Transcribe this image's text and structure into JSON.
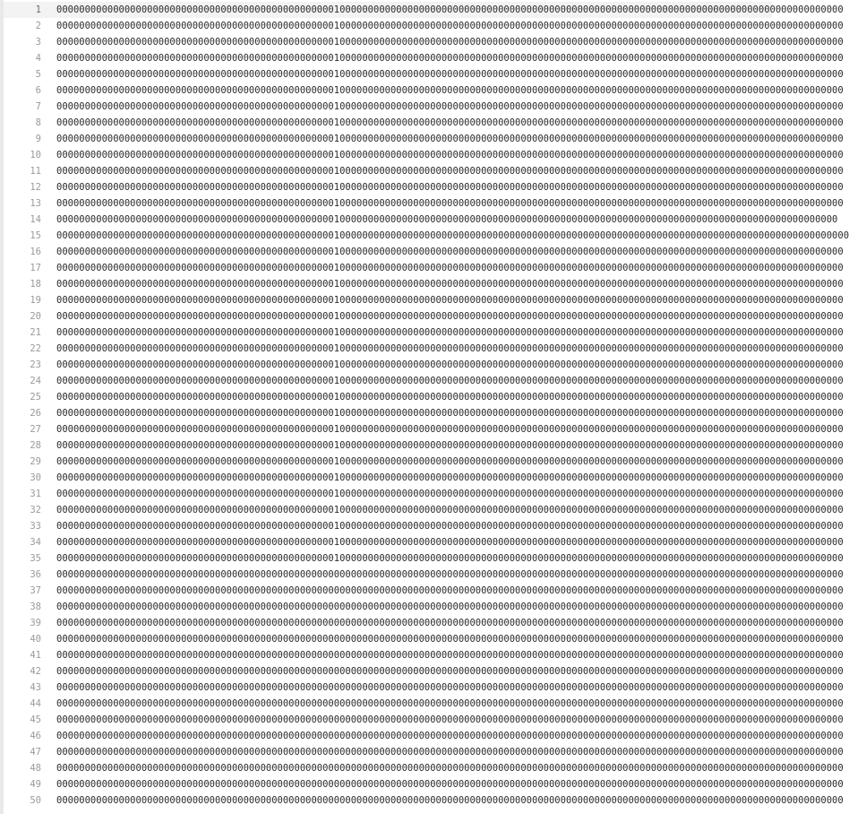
{
  "editor": {
    "current_line": 1,
    "lines": [
      {
        "number": "1",
        "text": "0000000000000000000000000000000000000000000000000100000000000000000000000000000000000000000000000000000000000000000000000000000000000000000"
      },
      {
        "number": "2",
        "text": "0000000000000000000000000000000000000000000000000100000000000000000000000000000000000000000000000000000000000000000000000000000000000000000"
      },
      {
        "number": "3",
        "text": "0000000000000000000000000000000000000000000000000100000000000000000000000000000000000000000000000000000000000000000000000000000000000000000"
      },
      {
        "number": "4",
        "text": "0000000000000000000000000000000000000000000000000100000000000000000000000000000000000000000000000000000000000000000000000000000000000000000"
      },
      {
        "number": "5",
        "text": "0000000000000000000000000000000000000000000000000100000000000000000000000000000000000000000000000000000000000000000000000000000000000000000"
      },
      {
        "number": "6",
        "text": "0000000000000000000000000000000000000000000000000100000000000000000000000000000000000000000000000000000000000000000000000000000000000000000"
      },
      {
        "number": "7",
        "text": "0000000000000000000000000000000000000000000000000100000000000000000000000000000000000000000000000000000000000000000000000000000000000000000"
      },
      {
        "number": "8",
        "text": "0000000000000000000000000000000000000000000000000100000000000000000000000000000000000000000000000000000000000000000000000000000000000000000"
      },
      {
        "number": "9",
        "text": "0000000000000000000000000000000000000000000000000100000000000000000000000000000000000000000000000000000000000000000000000000000000000000000"
      },
      {
        "number": "10",
        "text": "0000000000000000000000000000000000000000000000000100000000000000000000000000000000000000000000000000000000000000000000000000000000000000000"
      },
      {
        "number": "11",
        "text": "0000000000000000000000000000000000000000000000000100000000000000000000000000000000000000000000000000000000000000000000000000000000000000000"
      },
      {
        "number": "12",
        "text": "0000000000000000000000000000000000000000000000000100000000000000000000000000000000000000000000000000000000000000000000000000000000000000000"
      },
      {
        "number": "13",
        "text": "0000000000000000000000000000000000000000000000000100000000000000000000000000000000000000000000000000000000000000000000000000000000000000000"
      },
      {
        "number": "14",
        "text": "000000000000000000000000000000000000000000000000010000000000000000000000000000000000000000000000000000000000000000000000000000000000000000"
      },
      {
        "number": "15",
        "text": "00000000000000000000000000000000000000000000000001000000000000000000000000000000000000000000000000000000000000000000000000000000000000000000"
      },
      {
        "number": "16",
        "text": "0000000000000000000000000000000000000000000000000100000000000000000000000000000000000000000000000000000000000000000000000000000000000000000"
      },
      {
        "number": "17",
        "text": "0000000000000000000000000000000000000000000000000100000000000000000000000000000000000000000000000000000000000000000000000000000000000000000"
      },
      {
        "number": "18",
        "text": "0000000000000000000000000000000000000000000000000100000000000000000000000000000000000000000000000000000000000000000000000000000000000000000"
      },
      {
        "number": "19",
        "text": "0000000000000000000000000000000000000000000000000100000000000000000000000000000000000000000000000000000000000000000000000000000000000000000"
      },
      {
        "number": "20",
        "text": "0000000000000000000000000000000000000000000000000100000000000000000000000000000000000000000000000000000000000000000000000000000000000000000"
      },
      {
        "number": "21",
        "text": "0000000000000000000000000000000000000000000000000100000000000000000000000000000000000000000000000000000000000000000000000000000000000000000"
      },
      {
        "number": "22",
        "text": "0000000000000000000000000000000000000000000000000100000000000000000000000000000000000000000000000000000000000000000000000000000000000000000"
      },
      {
        "number": "23",
        "text": "0000000000000000000000000000000000000000000000000100000000000000000000000000000000000000000000000000000000000000000000000000000000000000000"
      },
      {
        "number": "24",
        "text": "0000000000000000000000000000000000000000000000000100000000000000000000000000000000000000000000000000000000000000000000000000000000000000000"
      },
      {
        "number": "25",
        "text": "0000000000000000000000000000000000000000000000000100000000000000000000000000000000000000000000000000000000000000000000000000000000000000000"
      },
      {
        "number": "26",
        "text": "0000000000000000000000000000000000000000000000000100000000000000000000000000000000000000000000000000000000000000000000000000000000000000000"
      },
      {
        "number": "27",
        "text": "0000000000000000000000000000000000000000000000000100000000000000000000000000000000000000000000000000000000000000000000000000000000000000000"
      },
      {
        "number": "28",
        "text": "0000000000000000000000000000000000000000000000000100000000000000000000000000000000000000000000000000000000000000000000000000000000000000000"
      },
      {
        "number": "29",
        "text": "0000000000000000000000000000000000000000000000000100000000000000000000000000000000000000000000000000000000000000000000000000000000000000000"
      },
      {
        "number": "30",
        "text": "0000000000000000000000000000000000000000000000000100000000000000000000000000000000000000000000000000000000000000000000000000000000000000000"
      },
      {
        "number": "31",
        "text": "0000000000000000000000000000000000000000000000000100000000000000000000000000000000000000000000000000000000000000000000000000000000000000000"
      },
      {
        "number": "32",
        "text": "0000000000000000000000000000000000000000000000000100000000000000000000000000000000000000000000000000000000000000000000000000000000000000000"
      },
      {
        "number": "33",
        "text": "0000000000000000000000000000000000000000000000000100000000000000000000000000000000000000000000000000000000000000000000000000000000000000000"
      },
      {
        "number": "34",
        "text": "0000000000000000000000000000000000000000000000000100000000000000000000000000000000000000000000000000000000000000000000000000000000000000000"
      },
      {
        "number": "35",
        "text": "0000000000000000000000000000000000000000000000000100000000000000000000000000000000000000000000000000000000000000000000000000000000000000000"
      },
      {
        "number": "36",
        "text": "0000000000000000000000000000000000000000000000000000000000000000000000000000000000000000000000000000000000000000000000000000000000000000000"
      },
      {
        "number": "37",
        "text": "0000000000000000000000000000000000000000000000000000000000000000000000000000000000000000000000000000000000000000000000000000000000000000000"
      },
      {
        "number": "38",
        "text": "0000000000000000000000000000000000000000000000000000000000000000000000000000000000000000000000000000000000000000000000000000000000000000000"
      },
      {
        "number": "39",
        "text": "0000000000000000000000000000000000000000000000000000000000000000000000000000000000000000000000000000000000000000000000000000000000000000000"
      },
      {
        "number": "40",
        "text": "0000000000000000000000000000000000000000000000000000000000000000000000000000000000000000000000000000000000000000000000000000000000000000000"
      },
      {
        "number": "41",
        "text": "0000000000000000000000000000000000000000000000000000000000000000000000000000000000000000000000000000000000000000000000000000000000000000000"
      },
      {
        "number": "42",
        "text": "0000000000000000000000000000000000000000000000000000000000000000000000000000000000000000000000000000000000000000000000000000000000000000000"
      },
      {
        "number": "43",
        "text": "0000000000000000000000000000000000000000000000000000000000000000000000000000000000000000000000000000000000000000000000000000000000000000000"
      },
      {
        "number": "44",
        "text": "0000000000000000000000000000000000000000000000000000000000000000000000000000000000000000000000000000000000000000000000000000000000000000000"
      },
      {
        "number": "45",
        "text": "0000000000000000000000000000000000000000000000000000000000000000000000000000000000000000000000000000000000000000000000000000000000000000000"
      },
      {
        "number": "46",
        "text": "0000000000000000000000000000000000000000000000000000000000000000000000000000000000000000000000000000000000000000000000000000000000000000000"
      },
      {
        "number": "47",
        "text": "0000000000000000000000000000000000000000000000000000000000000000000000000000000000000000000000000000000000000000000000000000000000000000000"
      },
      {
        "number": "48",
        "text": "0000000000000000000000000000000000000000000000000000000000000000000000000000000000000000000000000000000000000000000000000000000000000000000"
      },
      {
        "number": "49",
        "text": "0000000000000000000000000000000000000000000000000000000000000000000000000000000000000000000000000000000000000000000000000000000000000000000"
      },
      {
        "number": "50",
        "text": "0000000000000000000000000000000000000000000000000000000000000000000000000000000000000000000000000000000000000000000000000000000000000000000"
      }
    ]
  }
}
